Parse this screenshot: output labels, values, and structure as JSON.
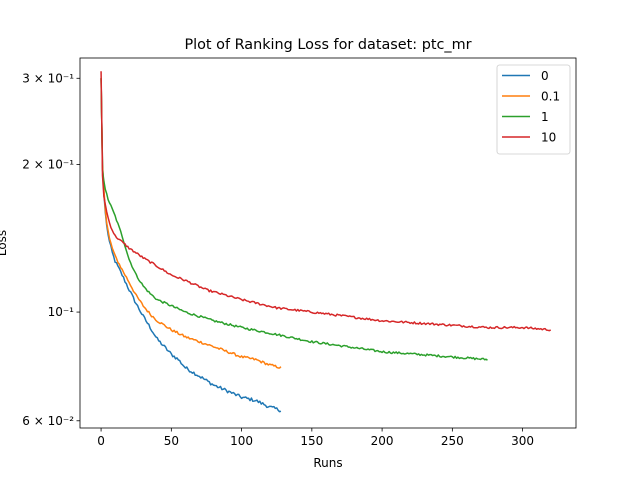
{
  "chart_data": {
    "type": "line",
    "title": "Plot of Ranking Loss for dataset: ptc_mr",
    "xlabel": "Runs",
    "ylabel": "Loss",
    "xlim": [
      -15,
      338
    ],
    "ylim": [
      0.058,
      0.33
    ],
    "yscale": "log",
    "grid": false,
    "legend_position": "top-right",
    "x_ticks": [
      0,
      50,
      100,
      150,
      200,
      250,
      300
    ],
    "x_tick_labels": [
      "0",
      "50",
      "100",
      "150",
      "200",
      "250",
      "300"
    ],
    "y_ticks": [
      0.06,
      0.1,
      0.2,
      0.3
    ],
    "y_tick_labels": [
      "6 × 10⁻²",
      "10⁻¹",
      "2 × 10⁻¹",
      "3 × 10⁻¹"
    ],
    "series": [
      {
        "name": "0",
        "color": "#1f77b4",
        "points": [
          [
            0,
            0.3
          ],
          [
            1,
            0.2
          ],
          [
            2,
            0.175
          ],
          [
            3,
            0.16
          ],
          [
            4,
            0.15
          ],
          [
            6,
            0.139
          ],
          [
            8,
            0.132
          ],
          [
            10,
            0.127
          ],
          [
            15,
            0.119
          ],
          [
            20,
            0.111
          ],
          [
            25,
            0.104
          ],
          [
            30,
            0.098
          ],
          [
            35,
            0.093
          ],
          [
            40,
            0.088
          ],
          [
            45,
            0.085
          ],
          [
            50,
            0.082
          ],
          [
            55,
            0.08
          ],
          [
            60,
            0.077
          ],
          [
            70,
            0.074
          ],
          [
            80,
            0.071
          ],
          [
            90,
            0.069
          ],
          [
            100,
            0.067
          ],
          [
            110,
            0.066
          ],
          [
            120,
            0.064
          ],
          [
            128,
            0.063
          ]
        ],
        "noise": 0.008
      },
      {
        "name": "0.1",
        "color": "#ff7f0e",
        "points": [
          [
            0,
            0.3
          ],
          [
            1,
            0.2
          ],
          [
            2,
            0.178
          ],
          [
            3,
            0.162
          ],
          [
            4,
            0.152
          ],
          [
            6,
            0.141
          ],
          [
            8,
            0.135
          ],
          [
            10,
            0.13
          ],
          [
            15,
            0.122
          ],
          [
            20,
            0.115
          ],
          [
            25,
            0.108
          ],
          [
            30,
            0.103
          ],
          [
            35,
            0.099
          ],
          [
            40,
            0.096
          ],
          [
            50,
            0.092
          ],
          [
            60,
            0.089
          ],
          [
            70,
            0.087
          ],
          [
            80,
            0.085
          ],
          [
            90,
            0.083
          ],
          [
            100,
            0.081
          ],
          [
            110,
            0.08
          ],
          [
            120,
            0.078
          ],
          [
            128,
            0.077
          ]
        ],
        "noise": 0.006
      },
      {
        "name": "1",
        "color": "#2ca02c",
        "points": [
          [
            0,
            0.3
          ],
          [
            1,
            0.195
          ],
          [
            2,
            0.185
          ],
          [
            3,
            0.178
          ],
          [
            5,
            0.17
          ],
          [
            8,
            0.162
          ],
          [
            10,
            0.157
          ],
          [
            15,
            0.143
          ],
          [
            20,
            0.128
          ],
          [
            25,
            0.119
          ],
          [
            30,
            0.113
          ],
          [
            35,
            0.109
          ],
          [
            40,
            0.106
          ],
          [
            50,
            0.103
          ],
          [
            60,
            0.1
          ],
          [
            80,
            0.096
          ],
          [
            100,
            0.093
          ],
          [
            125,
            0.09
          ],
          [
            150,
            0.087
          ],
          [
            175,
            0.085
          ],
          [
            200,
            0.083
          ],
          [
            225,
            0.082
          ],
          [
            250,
            0.081
          ],
          [
            275,
            0.08
          ]
        ],
        "noise": 0.005
      },
      {
        "name": "10",
        "color": "#d62728",
        "points": [
          [
            0,
            0.31
          ],
          [
            1,
            0.19
          ],
          [
            2,
            0.172
          ],
          [
            4,
            0.16
          ],
          [
            6,
            0.152
          ],
          [
            8,
            0.147
          ],
          [
            10,
            0.143
          ],
          [
            15,
            0.139
          ],
          [
            20,
            0.135
          ],
          [
            25,
            0.132
          ],
          [
            30,
            0.129
          ],
          [
            40,
            0.124
          ],
          [
            50,
            0.119
          ],
          [
            60,
            0.116
          ],
          [
            75,
            0.111
          ],
          [
            100,
            0.106
          ],
          [
            125,
            0.102
          ],
          [
            150,
            0.1
          ],
          [
            175,
            0.098
          ],
          [
            200,
            0.096
          ],
          [
            225,
            0.095
          ],
          [
            250,
            0.094
          ],
          [
            275,
            0.093
          ],
          [
            300,
            0.093
          ],
          [
            320,
            0.092
          ]
        ],
        "noise": 0.005
      }
    ]
  }
}
